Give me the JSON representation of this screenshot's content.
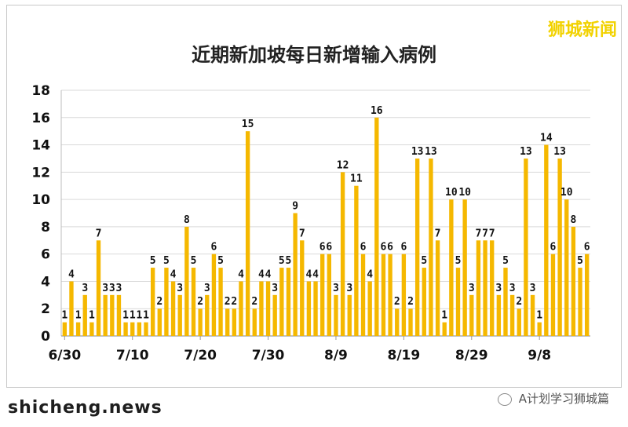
{
  "brand": "狮城新闻",
  "footer_left": "shicheng.news",
  "footer_right": "A计划学习狮城篇",
  "colors": {
    "bar": "#f5b800",
    "grid": "#d9d9d9"
  },
  "chart_data": {
    "type": "bar",
    "title": "近期新加坡每日新增输入病例",
    "xlabel": "",
    "ylabel": "",
    "ylim": [
      0,
      18
    ],
    "yticks": [
      0,
      2,
      4,
      6,
      8,
      10,
      12,
      14,
      16,
      18
    ],
    "xtick_labels": [
      {
        "index": 0,
        "label": "6/30"
      },
      {
        "index": 10,
        "label": "7/10"
      },
      {
        "index": 20,
        "label": "7/20"
      },
      {
        "index": 30,
        "label": "7/30"
      },
      {
        "index": 40,
        "label": "8/9"
      },
      {
        "index": 50,
        "label": "8/19"
      },
      {
        "index": 60,
        "label": "8/29"
      },
      {
        "index": 70,
        "label": "9/8"
      }
    ],
    "values": [
      1,
      4,
      1,
      3,
      1,
      7,
      3,
      3,
      3,
      1,
      1,
      1,
      1,
      5,
      2,
      5,
      4,
      3,
      8,
      5,
      2,
      3,
      6,
      5,
      2,
      2,
      4,
      15,
      2,
      4,
      4,
      3,
      5,
      5,
      9,
      7,
      4,
      4,
      6,
      6,
      3,
      12,
      3,
      11,
      6,
      4,
      16,
      6,
      6,
      2,
      6,
      2,
      13,
      5,
      13,
      7,
      1,
      10,
      5,
      10,
      3,
      7,
      7,
      7,
      3,
      5,
      3,
      2,
      13,
      3,
      1,
      14,
      6,
      13,
      10,
      8,
      5,
      6
    ]
  }
}
